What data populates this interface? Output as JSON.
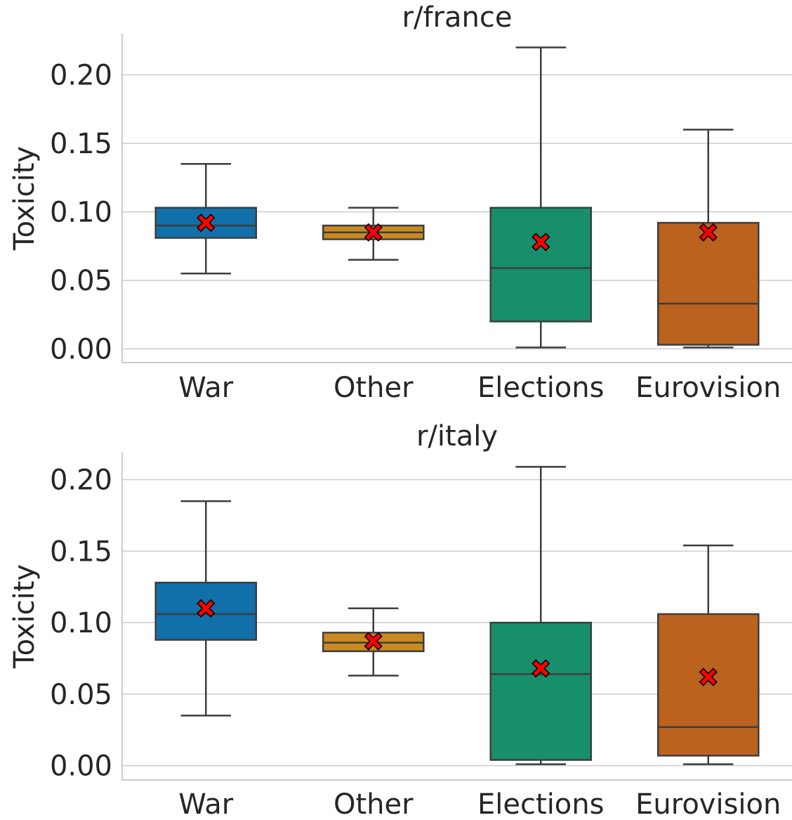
{
  "chart_data": [
    {
      "type": "box",
      "title": "r/france",
      "ylabel": "Toxicity",
      "ylim": [
        -0.01,
        0.23
      ],
      "yticks": [
        "0.00",
        "0.05",
        "0.10",
        "0.15",
        "0.20"
      ],
      "ytick_values": [
        0.0,
        0.05,
        0.1,
        0.15,
        0.2
      ],
      "grid": true,
      "categories": [
        "War",
        "Other",
        "Elections",
        "Eurovision"
      ],
      "colors": [
        "#1170aa",
        "#c98a1f",
        "#178f6a",
        "#bb621f"
      ],
      "boxes": [
        {
          "whislo": 0.055,
          "q1": 0.081,
          "median": 0.09,
          "q3": 0.103,
          "whishi": 0.135,
          "mean": 0.092
        },
        {
          "whislo": 0.065,
          "q1": 0.08,
          "median": 0.085,
          "q3": 0.09,
          "whishi": 0.103,
          "mean": 0.085
        },
        {
          "whislo": 0.001,
          "q1": 0.02,
          "median": 0.059,
          "q3": 0.103,
          "whishi": 0.22,
          "mean": 0.078
        },
        {
          "whislo": 0.001,
          "q1": 0.003,
          "median": 0.033,
          "q3": 0.092,
          "whishi": 0.16,
          "mean": 0.085
        }
      ]
    },
    {
      "type": "box",
      "title": "r/italy",
      "ylabel": "Toxicity",
      "ylim": [
        -0.01,
        0.219
      ],
      "yticks": [
        "0.00",
        "0.05",
        "0.10",
        "0.15",
        "0.20"
      ],
      "ytick_values": [
        0.0,
        0.05,
        0.1,
        0.15,
        0.2
      ],
      "grid": true,
      "categories": [
        "War",
        "Other",
        "Elections",
        "Eurovision"
      ],
      "colors": [
        "#1170aa",
        "#c98a1f",
        "#178f6a",
        "#bb621f"
      ],
      "boxes": [
        {
          "whislo": 0.035,
          "q1": 0.088,
          "median": 0.106,
          "q3": 0.128,
          "whishi": 0.185,
          "mean": 0.11
        },
        {
          "whislo": 0.063,
          "q1": 0.08,
          "median": 0.086,
          "q3": 0.093,
          "whishi": 0.11,
          "mean": 0.087
        },
        {
          "whislo": 0.001,
          "q1": 0.004,
          "median": 0.064,
          "q3": 0.1,
          "whishi": 0.209,
          "mean": 0.068
        },
        {
          "whislo": 0.001,
          "q1": 0.007,
          "median": 0.027,
          "q3": 0.106,
          "whishi": 0.154,
          "mean": 0.062
        }
      ]
    }
  ]
}
